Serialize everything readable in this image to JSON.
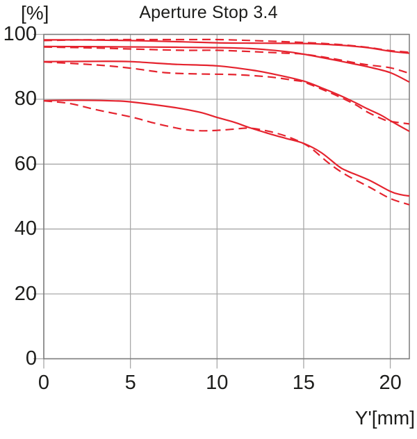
{
  "page": {
    "background": "#ffffff"
  },
  "colors": {
    "curve": "#e5232e",
    "grid": "#a8a8a8",
    "frame": "#7a7a7a",
    "text": "#1d1d1b",
    "background": "#ffffff"
  },
  "chart_data": {
    "type": "line",
    "title": "Aperture Stop 3.4",
    "xlabel": "Y'[mm]",
    "ylabel": "[%]",
    "xlim": [
      0,
      21.1
    ],
    "ylim": [
      0,
      100
    ],
    "x_ticks": [
      0,
      5,
      10,
      15,
      20
    ],
    "y_ticks": [
      0,
      20,
      40,
      60,
      80,
      100
    ],
    "grid": true,
    "legend": "none",
    "series": [
      {
        "id": "pair1-solid",
        "line": "solid",
        "points": [
          [
            0,
            98.3
          ],
          [
            2,
            98.3
          ],
          [
            5,
            98.1
          ],
          [
            8,
            97.7
          ],
          [
            10,
            97.4
          ],
          [
            12,
            97.3
          ],
          [
            15,
            97.2
          ],
          [
            17,
            96.7
          ],
          [
            18.7,
            95.9
          ],
          [
            20,
            94.8
          ],
          [
            21.1,
            94.2
          ]
        ]
      },
      {
        "id": "pair1-dashed",
        "line": "dashed",
        "points": [
          [
            0,
            98.1
          ],
          [
            2,
            98.3
          ],
          [
            5,
            98.4
          ],
          [
            8,
            98.4
          ],
          [
            10,
            98.4
          ],
          [
            12,
            98.1
          ],
          [
            15,
            97.5
          ],
          [
            17,
            96.9
          ],
          [
            18.7,
            96.0
          ],
          [
            20,
            95.0
          ],
          [
            21.1,
            94.5
          ]
        ]
      },
      {
        "id": "pair2-solid",
        "line": "solid",
        "points": [
          [
            0,
            96.3
          ],
          [
            3,
            96.2
          ],
          [
            6,
            96.1
          ],
          [
            10,
            95.9
          ],
          [
            12,
            95.6
          ],
          [
            14,
            94.7
          ],
          [
            15,
            93.9
          ],
          [
            16.5,
            92.4
          ],
          [
            18,
            90.8
          ],
          [
            18.7,
            90.0
          ],
          [
            20,
            88.2
          ],
          [
            21.1,
            85.3
          ]
        ]
      },
      {
        "id": "pair2-dashed",
        "line": "dashed",
        "points": [
          [
            0,
            96.1
          ],
          [
            3,
            95.8
          ],
          [
            5,
            95.5
          ],
          [
            8,
            95.1
          ],
          [
            10,
            95.1
          ],
          [
            12,
            94.7
          ],
          [
            14,
            94.2
          ],
          [
            15,
            93.9
          ],
          [
            16.5,
            92.7
          ],
          [
            18,
            91.2
          ],
          [
            18.7,
            90.6
          ],
          [
            20,
            89.7
          ],
          [
            21.1,
            88.0
          ]
        ]
      },
      {
        "id": "pair3-solid",
        "line": "solid",
        "points": [
          [
            0,
            91.6
          ],
          [
            3,
            91.7
          ],
          [
            5,
            91.6
          ],
          [
            7.5,
            90.8
          ],
          [
            10,
            90.3
          ],
          [
            12,
            89.0
          ],
          [
            13.5,
            87.5
          ],
          [
            15,
            85.6
          ],
          [
            16,
            83.6
          ],
          [
            17,
            81.4
          ],
          [
            18,
            78.9
          ],
          [
            18.7,
            77.0
          ],
          [
            19.5,
            75.0
          ],
          [
            20,
            73.4
          ],
          [
            21.1,
            70.1
          ]
        ]
      },
      {
        "id": "pair3-dashed",
        "line": "dashed",
        "points": [
          [
            0,
            91.5
          ],
          [
            3,
            90.6
          ],
          [
            5,
            89.6
          ],
          [
            7,
            88.2
          ],
          [
            9,
            87.8
          ],
          [
            11,
            87.6
          ],
          [
            13,
            86.9
          ],
          [
            14.5,
            85.8
          ],
          [
            15,
            85.3
          ],
          [
            16,
            83.2
          ],
          [
            17,
            80.9
          ],
          [
            18,
            78.3
          ],
          [
            18.7,
            76.0
          ],
          [
            19.5,
            74.0
          ],
          [
            20,
            73.2
          ],
          [
            21.1,
            72.4
          ]
        ]
      },
      {
        "id": "pair4-solid",
        "line": "solid",
        "points": [
          [
            0,
            79.6
          ],
          [
            2,
            79.7
          ],
          [
            4,
            79.5
          ],
          [
            5,
            79.2
          ],
          [
            7.5,
            77.5
          ],
          [
            9,
            76.0
          ],
          [
            10,
            74.4
          ],
          [
            11,
            72.9
          ],
          [
            11.9,
            71.2
          ],
          [
            13,
            69.4
          ],
          [
            14,
            67.9
          ],
          [
            15,
            66.4
          ],
          [
            16,
            63.6
          ],
          [
            17,
            59.4
          ],
          [
            17.5,
            57.9
          ],
          [
            18.8,
            55.0
          ],
          [
            20,
            51.6
          ],
          [
            20.6,
            50.6
          ],
          [
            21.1,
            50.2
          ]
        ]
      },
      {
        "id": "pair4-dashed",
        "line": "dashed",
        "points": [
          [
            0,
            79.5
          ],
          [
            1.5,
            78.7
          ],
          [
            3,
            76.8
          ],
          [
            5,
            74.6
          ],
          [
            6.5,
            72.5
          ],
          [
            8,
            70.8
          ],
          [
            9,
            70.3
          ],
          [
            10,
            70.4
          ],
          [
            11,
            70.8
          ],
          [
            11.9,
            71.1
          ],
          [
            13,
            70.1
          ],
          [
            14,
            68.6
          ],
          [
            14.9,
            66.6
          ],
          [
            15.5,
            64.6
          ],
          [
            16.5,
            60.1
          ],
          [
            17.5,
            56.5
          ],
          [
            18.8,
            52.9
          ],
          [
            20,
            49.4
          ],
          [
            21.1,
            47.5
          ]
        ]
      }
    ]
  }
}
